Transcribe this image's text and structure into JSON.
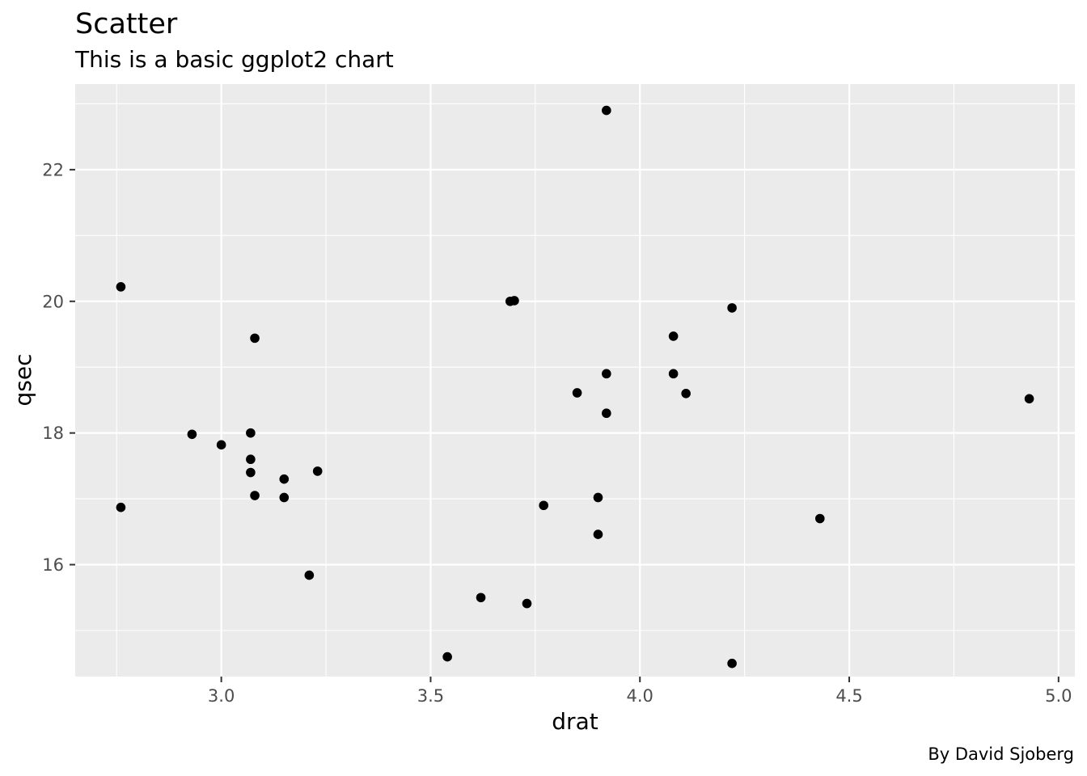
{
  "chart_data": {
    "type": "scatter",
    "title": "Scatter",
    "subtitle": "This is a basic ggplot2 chart",
    "xlabel": "drat",
    "ylabel": "qsec",
    "caption": "By David Sjoberg",
    "xlim": [
      2.651,
      5.039
    ],
    "ylim": [
      14.3,
      23.3
    ],
    "x_ticks": [
      3.0,
      3.5,
      4.0,
      4.5,
      5.0
    ],
    "x_tick_labels": [
      "3.0",
      "3.5",
      "4.0",
      "4.5",
      "5.0"
    ],
    "x_minor": [
      2.75,
      3.25,
      3.75,
      4.25,
      4.75
    ],
    "y_ticks": [
      16,
      18,
      20,
      22
    ],
    "y_tick_labels": [
      "16",
      "18",
      "20",
      "22"
    ],
    "y_minor": [
      15,
      17,
      19,
      21,
      23
    ],
    "grid": true,
    "colors": {
      "panel_background": "#EBEBEB",
      "grid": "#FFFFFF",
      "point": "#000000",
      "tick_label": "#4D4D4D",
      "tick_mark": "#333333"
    },
    "series": [
      {
        "points": [
          {
            "x": 3.9,
            "y": 16.46
          },
          {
            "x": 3.9,
            "y": 17.02
          },
          {
            "x": 3.85,
            "y": 18.61
          },
          {
            "x": 3.08,
            "y": 19.44
          },
          {
            "x": 3.15,
            "y": 17.02
          },
          {
            "x": 2.76,
            "y": 20.22
          },
          {
            "x": 3.21,
            "y": 15.84
          },
          {
            "x": 3.69,
            "y": 20.0
          },
          {
            "x": 3.92,
            "y": 22.9
          },
          {
            "x": 3.92,
            "y": 18.3
          },
          {
            "x": 3.92,
            "y": 18.9
          },
          {
            "x": 3.07,
            "y": 17.4
          },
          {
            "x": 3.07,
            "y": 17.6
          },
          {
            "x": 3.07,
            "y": 18.0
          },
          {
            "x": 2.93,
            "y": 17.98
          },
          {
            "x": 3.0,
            "y": 17.82
          },
          {
            "x": 3.23,
            "y": 17.42
          },
          {
            "x": 4.08,
            "y": 19.47
          },
          {
            "x": 4.93,
            "y": 18.52
          },
          {
            "x": 4.22,
            "y": 19.9
          },
          {
            "x": 3.7,
            "y": 20.01
          },
          {
            "x": 2.76,
            "y": 16.87
          },
          {
            "x": 3.15,
            "y": 17.3
          },
          {
            "x": 3.73,
            "y": 15.41
          },
          {
            "x": 3.08,
            "y": 17.05
          },
          {
            "x": 4.08,
            "y": 18.9
          },
          {
            "x": 4.43,
            "y": 16.7
          },
          {
            "x": 3.77,
            "y": 16.9
          },
          {
            "x": 4.22,
            "y": 14.5
          },
          {
            "x": 3.62,
            "y": 15.5
          },
          {
            "x": 3.54,
            "y": 14.6
          },
          {
            "x": 4.11,
            "y": 18.6
          }
        ]
      }
    ]
  }
}
